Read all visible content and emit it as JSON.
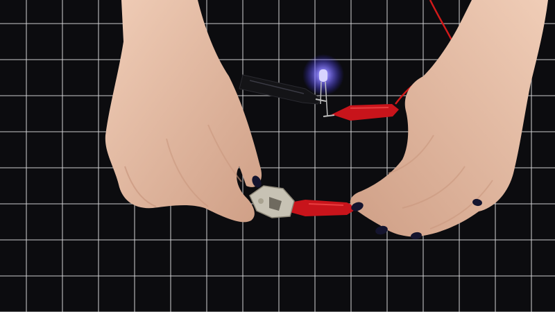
{
  "scene": {
    "colors": {
      "mat": "#0c0c0f",
      "grid": "#d9d9dc",
      "skin": "#e6bfa8",
      "skin_shadow": "#c9977f",
      "nail": "#14142e",
      "clip_red": "#c8141b",
      "clip_black": "#151518",
      "wire_red": "#d11a1a",
      "metal": "#c7c2b4",
      "led_glow": "#6a5cff"
    },
    "icons": {
      "led": "led-icon",
      "battery_holder": "coin-cell-holder-icon"
    }
  }
}
